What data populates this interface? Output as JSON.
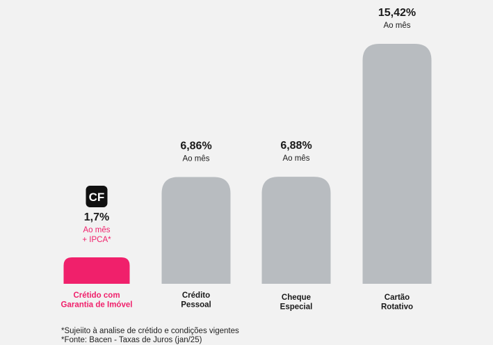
{
  "chart_data": {
    "type": "bar",
    "categories": [
      [
        "Crétido com",
        "Garantia de Imóvel"
      ],
      [
        "Crédito",
        "Pessoal"
      ],
      [
        "Cheque",
        "Especial"
      ],
      [
        "Cartão",
        "Rotativo"
      ]
    ],
    "values": [
      1.7,
      6.86,
      6.88,
      15.42
    ],
    "value_labels": [
      "1,7%",
      "6,86%",
      "6,88%",
      "15,42%"
    ],
    "sub_labels": [
      [
        "Ao mês",
        "+ IPCA*"
      ],
      [
        "Ao mês"
      ],
      [
        "Ao mês"
      ],
      [
        "Ao mês"
      ]
    ],
    "highlight_index": 0,
    "logo_text": "CF",
    "ylim": [
      0,
      15.42
    ],
    "grid": false,
    "legend": "none"
  },
  "colors": {
    "highlight_bar": "#f0206b",
    "highlight_text": "#f0206b",
    "bar": "#b8bcc0",
    "text": "#1a1a1a",
    "logo_bg": "#111111",
    "logo_fg": "#ffffff"
  },
  "footnotes": [
    "*Sujeiito  à analise de crétido e condições vigentes",
    "*Fonte: Bacen - Taxas de Juros (jan/25)"
  ]
}
